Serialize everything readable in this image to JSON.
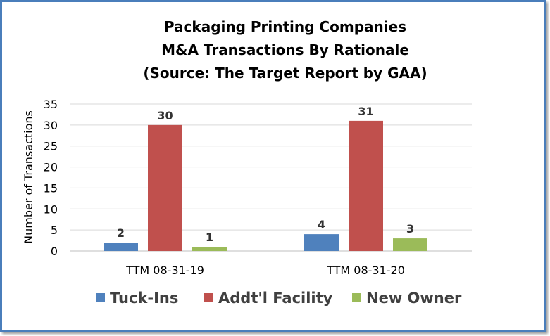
{
  "chart_data": {
    "type": "bar",
    "title": [
      "Packaging Printing Companies",
      "M&A Transactions By Rationale",
      "(Source: The Target Report by GAA)"
    ],
    "xlabel": "",
    "ylabel": "Number of Transactions",
    "ylim": [
      0,
      35
    ],
    "yticks": [
      0,
      5,
      10,
      15,
      20,
      25,
      30,
      35
    ],
    "grid": true,
    "legend_position": "bottom",
    "categories": [
      "TTM 08-31-19",
      "TTM 08-31-20"
    ],
    "series": [
      {
        "name": "Tuck-Ins",
        "color": "#4f81bd",
        "values": [
          2,
          4
        ]
      },
      {
        "name": "Addt'l Facility",
        "color": "#c0504d",
        "values": [
          30,
          31
        ]
      },
      {
        "name": "New Owner",
        "color": "#9bbb59",
        "values": [
          1,
          3
        ]
      }
    ]
  }
}
